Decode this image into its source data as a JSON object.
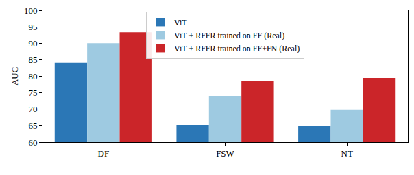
{
  "chart_data": {
    "type": "bar",
    "categories": [
      "DF",
      "FSW",
      "NT"
    ],
    "series": [
      {
        "name": "ViT",
        "color": "#2b77b6",
        "values": [
          84.1,
          65.2,
          65.0
        ]
      },
      {
        "name": "ViT + RFFR trained on FF (Real)",
        "color": "#9ecae1",
        "values": [
          90.0,
          74.0,
          69.8
        ]
      },
      {
        "name": "ViT + RFFR trained on FF+FN (Real)",
        "color": "#cb2529",
        "values": [
          93.3,
          78.5,
          79.5
        ]
      }
    ],
    "y_label": "AUC",
    "ylim": [
      60,
      100
    ],
    "yticks": [
      60,
      65,
      70,
      75,
      80,
      85,
      90,
      95,
      100
    ],
    "grid": false,
    "legend": "upper center"
  }
}
